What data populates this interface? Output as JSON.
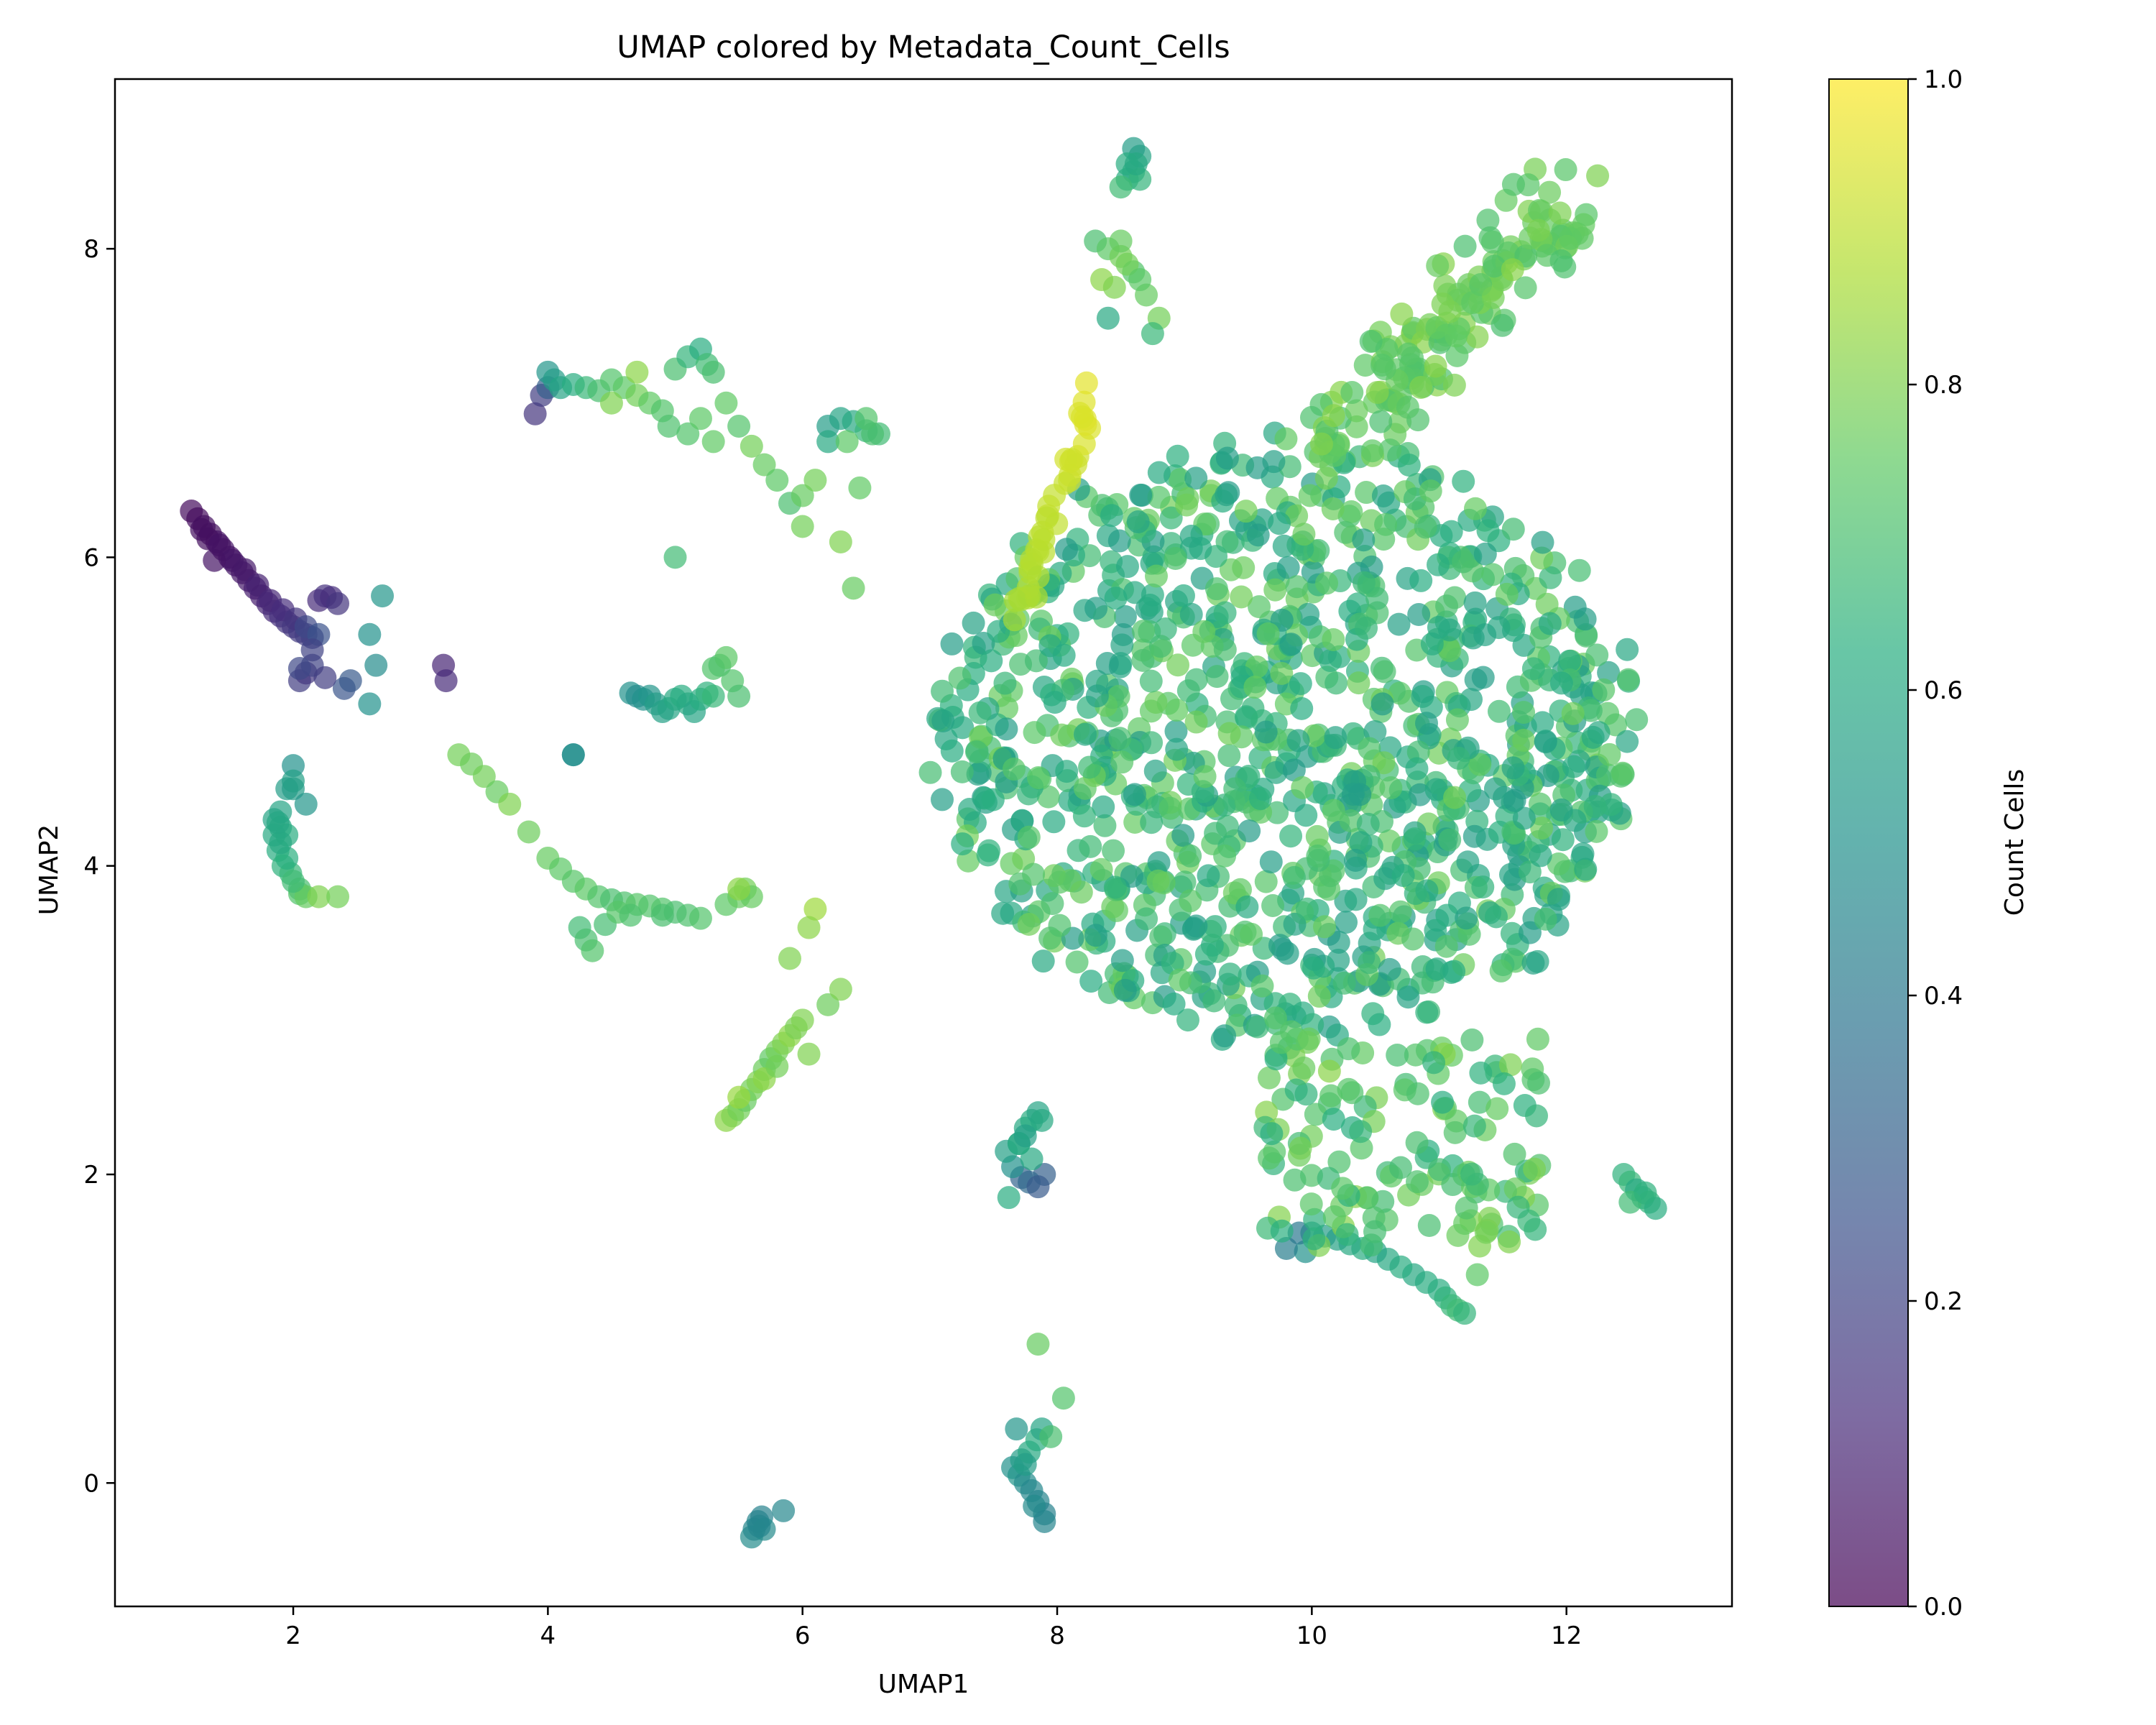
{
  "chart_data": {
    "type": "scatter",
    "title": "UMAP colored by Metadata_Count_Cells",
    "xlabel": "UMAP1",
    "ylabel": "UMAP2",
    "xlim": [
      0.6,
      13.3
    ],
    "ylim": [
      -0.8,
      9.1
    ],
    "xticks": [
      2,
      4,
      6,
      8,
      10,
      12
    ],
    "yticks": [
      0,
      2,
      4,
      6,
      8
    ],
    "grid": false,
    "colormap": "viridis",
    "point_alpha": 0.7,
    "colorbar": {
      "label": "Count Cells",
      "range": [
        0.0,
        1.0
      ],
      "ticks": [
        "0.0",
        "0.2",
        "0.4",
        "0.6",
        "0.8",
        "1.0"
      ]
    },
    "clusters": [
      {
        "x": [
          1.2,
          1.25,
          1.3,
          1.35,
          1.4,
          1.45,
          1.5,
          1.55,
          1.6,
          1.65,
          1.7,
          1.75,
          1.8,
          1.85,
          1.9,
          1.95,
          2.0,
          2.05,
          2.1,
          2.15,
          1.28,
          1.33,
          1.42,
          1.52,
          1.62,
          1.72,
          1.82,
          1.92,
          2.02,
          1.38
        ],
        "y": [
          6.3,
          6.25,
          6.2,
          6.15,
          6.1,
          6.05,
          6.0,
          5.95,
          5.9,
          5.85,
          5.8,
          5.75,
          5.7,
          5.65,
          5.62,
          5.58,
          5.55,
          5.52,
          5.5,
          5.48,
          6.18,
          6.12,
          6.08,
          5.98,
          5.92,
          5.82,
          5.72,
          5.66,
          5.6,
          5.98
        ],
        "c": [
          0.03,
          0.03,
          0.04,
          0.04,
          0.05,
          0.05,
          0.05,
          0.06,
          0.06,
          0.07,
          0.08,
          0.08,
          0.1,
          0.12,
          0.14,
          0.15,
          0.16,
          0.17,
          0.18,
          0.19,
          0.04,
          0.04,
          0.05,
          0.06,
          0.07,
          0.09,
          0.11,
          0.13,
          0.15,
          0.05
        ]
      },
      {
        "x": [
          2.05,
          2.1,
          2.15,
          2.2,
          2.25,
          2.3,
          2.1,
          2.2,
          2.4,
          2.45,
          2.15,
          2.25,
          2.05,
          2.35
        ],
        "y": [
          5.2,
          5.25,
          5.3,
          5.72,
          5.75,
          5.74,
          5.55,
          5.5,
          5.15,
          5.2,
          5.4,
          5.22,
          5.28,
          5.7
        ],
        "c": [
          0.18,
          0.16,
          0.2,
          0.12,
          0.14,
          0.13,
          0.22,
          0.25,
          0.26,
          0.28,
          0.2,
          0.18,
          0.22,
          0.15
        ]
      },
      {
        "x": [
          2.6,
          2.65,
          2.7,
          2.6,
          3.18,
          3.2,
          3.9,
          3.95,
          4.0
        ],
        "y": [
          5.5,
          5.3,
          5.75,
          5.05,
          5.3,
          5.2,
          6.93,
          7.05,
          7.1
        ],
        "c": [
          0.5,
          0.48,
          0.52,
          0.5,
          0.1,
          0.12,
          0.15,
          0.18,
          0.3
        ]
      },
      {
        "x": [
          1.85,
          1.9,
          1.95,
          2.0,
          1.88,
          1.92,
          1.98,
          2.05,
          1.9,
          1.95,
          2.0,
          2.05,
          2.1,
          1.95,
          2.0,
          2.2,
          2.35,
          1.85,
          1.9,
          2.1,
          2.0,
          1.88
        ],
        "y": [
          4.3,
          4.25,
          4.2,
          4.5,
          4.1,
          4.0,
          3.95,
          3.85,
          4.35,
          4.5,
          4.65,
          3.82,
          3.8,
          4.05,
          3.9,
          3.8,
          3.8,
          4.2,
          4.15,
          4.4,
          4.55,
          4.28
        ],
        "c": [
          0.58,
          0.6,
          0.62,
          0.55,
          0.62,
          0.64,
          0.66,
          0.7,
          0.58,
          0.55,
          0.5,
          0.72,
          0.76,
          0.63,
          0.68,
          0.8,
          0.78,
          0.6,
          0.6,
          0.52,
          0.56,
          0.59
        ]
      },
      {
        "x": [
          3.3,
          3.4,
          3.5,
          3.6,
          3.7,
          3.85,
          4.0,
          4.1,
          4.2,
          4.3,
          4.4,
          4.5,
          4.6,
          4.7,
          4.8,
          4.9,
          5.0,
          5.1,
          5.2,
          4.25,
          4.3,
          4.35,
          4.45,
          4.55,
          4.65,
          4.9,
          5.4,
          5.5,
          5.55,
          4.2
        ],
        "y": [
          4.72,
          4.66,
          4.58,
          4.48,
          4.4,
          4.22,
          4.05,
          3.98,
          3.9,
          3.85,
          3.8,
          3.78,
          3.76,
          3.75,
          3.74,
          3.72,
          3.7,
          3.68,
          3.66,
          3.6,
          3.52,
          3.45,
          3.62,
          3.7,
          3.68,
          3.68,
          3.75,
          3.8,
          3.85,
          4.72
        ],
        "c": [
          0.78,
          0.77,
          0.78,
          0.76,
          0.8,
          0.77,
          0.76,
          0.74,
          0.73,
          0.74,
          0.72,
          0.7,
          0.71,
          0.73,
          0.72,
          0.72,
          0.7,
          0.71,
          0.72,
          0.68,
          0.7,
          0.72,
          0.69,
          0.73,
          0.71,
          0.7,
          0.74,
          0.76,
          0.78,
          0.45
        ]
      },
      {
        "x": [
          4.0,
          4.05,
          4.1,
          4.2,
          4.3,
          4.4,
          4.5,
          4.6,
          4.7,
          4.8,
          4.9,
          5.0,
          5.1,
          5.2,
          5.25,
          5.3,
          5.4,
          5.5,
          5.6,
          5.7,
          5.8,
          5.9,
          6.0,
          5.1,
          5.2,
          5.3,
          5.0,
          4.5,
          4.7,
          4.95
        ],
        "y": [
          7.2,
          7.15,
          7.1,
          7.12,
          7.1,
          7.08,
          7.15,
          7.1,
          7.05,
          7.0,
          6.95,
          7.22,
          7.3,
          7.35,
          7.25,
          7.2,
          7.0,
          6.85,
          6.72,
          6.6,
          6.5,
          6.35,
          6.2,
          6.8,
          6.9,
          6.75,
          6.0,
          7.0,
          7.2,
          6.85
        ],
        "c": [
          0.52,
          0.55,
          0.58,
          0.62,
          0.66,
          0.7,
          0.72,
          0.74,
          0.78,
          0.75,
          0.72,
          0.7,
          0.65,
          0.62,
          0.68,
          0.7,
          0.75,
          0.72,
          0.78,
          0.76,
          0.74,
          0.7,
          0.78,
          0.72,
          0.74,
          0.75,
          0.68,
          0.8,
          0.82,
          0.71
        ]
      },
      {
        "x": [
          4.65,
          4.7,
          4.75,
          4.8,
          4.85,
          4.9,
          4.95,
          5.0,
          5.05,
          5.1,
          5.15,
          5.2,
          5.25,
          5.3,
          5.35,
          5.4,
          5.45,
          5.5,
          4.2,
          5.3
        ],
        "y": [
          5.12,
          5.1,
          5.08,
          5.1,
          5.05,
          5.0,
          5.02,
          5.08,
          5.1,
          5.05,
          5.0,
          5.08,
          5.12,
          5.1,
          5.3,
          5.35,
          5.2,
          5.1,
          4.72,
          5.28
        ],
        "c": [
          0.5,
          0.48,
          0.5,
          0.52,
          0.55,
          0.56,
          0.58,
          0.6,
          0.62,
          0.6,
          0.58,
          0.62,
          0.64,
          0.66,
          0.7,
          0.74,
          0.72,
          0.7,
          0.5,
          0.72
        ]
      },
      {
        "x": [
          6.2,
          6.3,
          6.4,
          6.5,
          6.6,
          6.2,
          6.5,
          6.35,
          6.0,
          6.1,
          6.3,
          6.45,
          6.55,
          6.4
        ],
        "y": [
          6.85,
          6.9,
          6.88,
          6.82,
          6.8,
          6.75,
          6.9,
          6.75,
          6.4,
          6.5,
          6.1,
          6.45,
          6.8,
          5.8
        ],
        "c": [
          0.55,
          0.58,
          0.6,
          0.66,
          0.68,
          0.6,
          0.72,
          0.74,
          0.76,
          0.78,
          0.8,
          0.75,
          0.7,
          0.76
        ]
      },
      {
        "x": [
          5.4,
          5.45,
          5.5,
          5.55,
          5.6,
          5.65,
          5.7,
          5.75,
          5.8,
          5.85,
          5.9,
          5.95,
          6.0,
          6.05,
          5.5,
          5.7,
          5.8,
          5.9,
          6.2,
          6.3,
          6.1,
          6.05,
          5.6,
          5.5
        ],
        "y": [
          2.35,
          2.38,
          2.42,
          2.48,
          2.55,
          2.6,
          2.68,
          2.75,
          2.8,
          2.85,
          2.9,
          2.95,
          3.0,
          2.78,
          2.5,
          2.62,
          2.7,
          3.4,
          3.1,
          3.2,
          3.72,
          3.6,
          3.8,
          3.85
        ],
        "c": [
          0.82,
          0.8,
          0.78,
          0.76,
          0.78,
          0.8,
          0.77,
          0.75,
          0.78,
          0.8,
          0.82,
          0.79,
          0.8,
          0.8,
          0.84,
          0.82,
          0.78,
          0.8,
          0.77,
          0.8,
          0.85,
          0.82,
          0.76,
          0.82
        ]
      },
      {
        "x": [
          8.55,
          8.6,
          8.65,
          8.6,
          8.55,
          8.65,
          8.5,
          8.62
        ],
        "y": [
          8.45,
          8.5,
          8.6,
          8.65,
          8.55,
          8.45,
          8.4,
          8.55
        ],
        "c": [
          0.62,
          0.6,
          0.58,
          0.55,
          0.62,
          0.65,
          0.68,
          0.6
        ]
      },
      {
        "x": [
          8.3,
          8.4,
          8.5,
          8.6,
          8.7,
          8.35,
          8.45,
          8.55,
          8.65,
          8.8,
          8.4,
          8.75,
          8.5
        ],
        "y": [
          8.05,
          8.0,
          7.95,
          7.85,
          7.7,
          7.8,
          7.75,
          7.9,
          7.8,
          7.55,
          7.55,
          7.45,
          8.05
        ],
        "c": [
          0.7,
          0.74,
          0.78,
          0.72,
          0.76,
          0.82,
          0.8,
          0.78,
          0.74,
          0.78,
          0.6,
          0.66,
          0.76
        ]
      },
      {
        "x": [
          7.7,
          7.75,
          7.8,
          7.85,
          7.9,
          7.72,
          7.78,
          7.85,
          7.65,
          7.6,
          7.8,
          7.7,
          7.88,
          7.62,
          7.75
        ],
        "y": [
          2.2,
          2.3,
          2.35,
          2.4,
          2.0,
          1.98,
          1.95,
          1.92,
          2.05,
          2.15,
          2.1,
          2.2,
          2.35,
          1.85,
          2.25
        ],
        "c": [
          0.55,
          0.6,
          0.62,
          0.58,
          0.3,
          0.32,
          0.34,
          0.28,
          0.5,
          0.56,
          0.6,
          0.62,
          0.6,
          0.62,
          0.56
        ]
      },
      {
        "x": [
          7.65,
          7.7,
          7.75,
          7.8,
          7.85,
          7.9,
          7.72,
          7.78,
          7.84,
          7.88,
          7.68,
          7.82,
          7.95,
          8.05,
          7.85,
          7.9,
          7.75
        ],
        "y": [
          0.1,
          0.05,
          0.0,
          -0.05,
          -0.12,
          -0.2,
          0.15,
          0.2,
          0.28,
          0.35,
          0.35,
          -0.15,
          0.3,
          0.55,
          0.9,
          -0.25,
          0.12
        ],
        "c": [
          0.5,
          0.52,
          0.48,
          0.46,
          0.45,
          0.44,
          0.55,
          0.6,
          0.62,
          0.58,
          0.52,
          0.47,
          0.7,
          0.72,
          0.76,
          0.45,
          0.55
        ]
      },
      {
        "x": [
          5.6,
          5.62,
          5.65,
          5.68,
          5.7,
          5.85,
          5.66
        ],
        "y": [
          -0.35,
          -0.3,
          -0.25,
          -0.22,
          -0.3,
          -0.18,
          -0.28
        ],
        "c": [
          0.48,
          0.46,
          0.45,
          0.44,
          0.47,
          0.46,
          0.45
        ]
      },
      {
        "x": [
          12.45,
          12.5,
          12.55,
          12.6,
          12.65,
          12.7,
          12.5,
          12.62
        ],
        "y": [
          2.0,
          1.95,
          1.9,
          1.85,
          1.82,
          1.78,
          1.82,
          1.88
        ],
        "c": [
          0.64,
          0.66,
          0.6,
          0.62,
          0.65,
          0.62,
          0.68,
          0.64
        ]
      },
      {
        "x": [
          11.0,
          11.05,
          11.1,
          11.15,
          11.2,
          10.9,
          10.8,
          10.7,
          10.6,
          10.5,
          10.4,
          10.3,
          10.2,
          10.1,
          10.0,
          9.95,
          9.8,
          9.9,
          11.3,
          11.25
        ],
        "y": [
          1.25,
          1.2,
          1.15,
          1.12,
          1.1,
          1.3,
          1.35,
          1.4,
          1.45,
          1.5,
          1.52,
          1.55,
          1.58,
          1.6,
          1.62,
          1.5,
          1.52,
          1.62,
          1.35,
          1.7
        ],
        "c": [
          0.62,
          0.64,
          0.66,
          0.68,
          0.65,
          0.62,
          0.6,
          0.62,
          0.6,
          0.58,
          0.62,
          0.6,
          0.57,
          0.55,
          0.55,
          0.5,
          0.42,
          0.4,
          0.74,
          0.8
        ]
      }
    ]
  }
}
